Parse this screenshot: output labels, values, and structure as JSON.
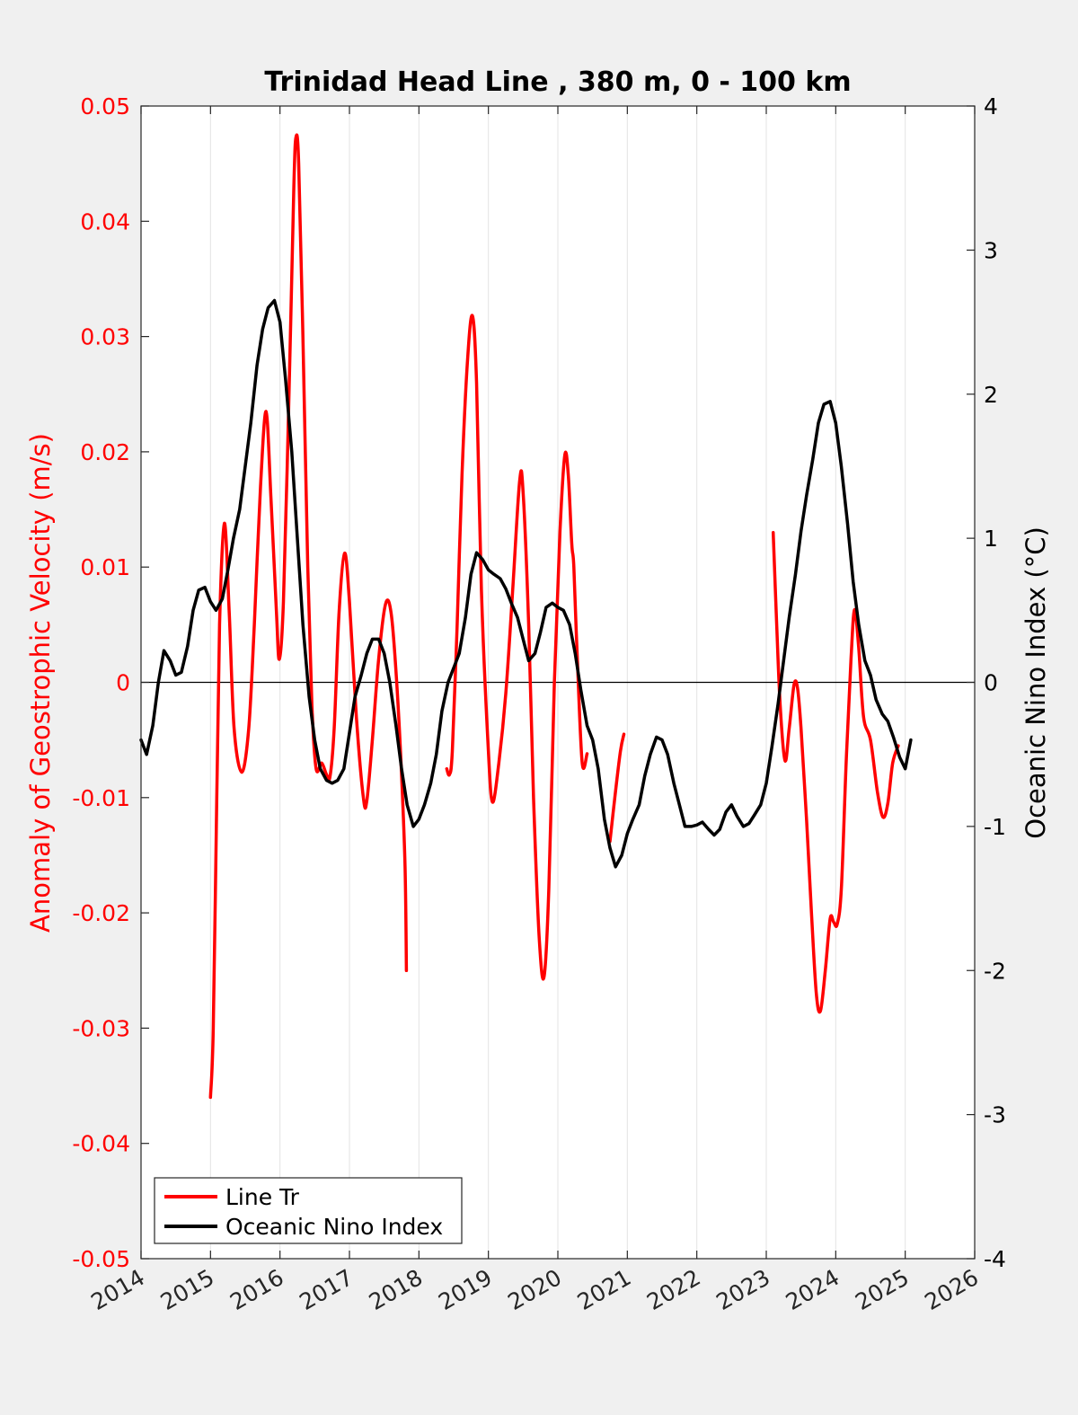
{
  "chart_data": {
    "type": "line",
    "title": "Trinidad Head Line , 380 m, 0 - 100 km",
    "xlabel": "",
    "xlim": [
      2014,
      2026
    ],
    "xticks": [
      2014,
      2015,
      2016,
      2017,
      2018,
      2019,
      2020,
      2021,
      2022,
      2023,
      2024,
      2025,
      2026
    ],
    "ylabel_left": "Anomaly of Geostrophic Velocity (m/s)",
    "ylim_left": [
      -0.05,
      0.05
    ],
    "yticks_left": [
      "-0.05",
      "-0.04",
      "-0.03",
      "-0.02",
      "-0.01",
      "0",
      "0.01",
      "0.02",
      "0.03",
      "0.04",
      "0.05"
    ],
    "ylabel_right": "Oceanic Nino Index (°C)",
    "ylim_right": [
      -4,
      4
    ],
    "yticks_right": [
      "-4",
      "-3",
      "-2",
      "-1",
      "0",
      "1",
      "2",
      "3",
      "4"
    ],
    "grid": "vertical",
    "legend_position": "bottom-left",
    "colors": {
      "line_tr": "#ff0000",
      "oni": "#000000"
    },
    "series": [
      {
        "name": "Line Tr",
        "axis": "left",
        "segments": [
          [
            [
              2015.0,
              -0.036
            ],
            [
              2015.04,
              -0.03
            ],
            [
              2015.09,
              -0.01
            ],
            [
              2015.13,
              0.005
            ],
            [
              2015.2,
              0.0138
            ],
            [
              2015.27,
              0.006
            ],
            [
              2015.34,
              -0.004
            ],
            [
              2015.45,
              -0.0078
            ],
            [
              2015.55,
              -0.004
            ],
            [
              2015.63,
              0.005
            ],
            [
              2015.72,
              0.017
            ],
            [
              2015.8,
              0.0235
            ],
            [
              2015.87,
              0.016
            ],
            [
              2015.95,
              0.006
            ],
            [
              2015.99,
              0.002
            ],
            [
              2016.05,
              0.007
            ],
            [
              2016.13,
              0.025
            ],
            [
              2016.2,
              0.043
            ],
            [
              2016.23,
              0.0473
            ],
            [
              2016.27,
              0.045
            ],
            [
              2016.33,
              0.03
            ],
            [
              2016.4,
              0.01
            ],
            [
              2016.46,
              -0.002
            ],
            [
              2016.52,
              -0.0075
            ],
            [
              2016.6,
              -0.007
            ],
            [
              2016.67,
              -0.008
            ],
            [
              2016.72,
              -0.0082
            ],
            [
              2016.78,
              -0.004
            ],
            [
              2016.85,
              0.006
            ],
            [
              2016.93,
              0.0112
            ],
            [
              2017.0,
              0.007
            ],
            [
              2017.1,
              -0.003
            ],
            [
              2017.2,
              -0.01
            ],
            [
              2017.25,
              -0.0103
            ],
            [
              2017.33,
              -0.005
            ],
            [
              2017.42,
              0.002
            ],
            [
              2017.52,
              0.0068
            ],
            [
              2017.6,
              0.006
            ],
            [
              2017.68,
              0.0
            ],
            [
              2017.75,
              -0.008
            ],
            [
              2017.8,
              -0.016
            ],
            [
              2017.82,
              -0.025
            ]
          ],
          [
            [
              2018.4,
              -0.0075
            ],
            [
              2018.44,
              -0.008
            ],
            [
              2018.48,
              -0.006
            ],
            [
              2018.55,
              0.005
            ],
            [
              2018.62,
              0.018
            ],
            [
              2018.7,
              0.028
            ],
            [
              2018.77,
              0.0318
            ],
            [
              2018.83,
              0.026
            ],
            [
              2018.9,
              0.008
            ],
            [
              2019.0,
              -0.006
            ],
            [
              2019.06,
              -0.0104
            ],
            [
              2019.15,
              -0.007
            ],
            [
              2019.25,
              -0.001
            ],
            [
              2019.35,
              0.008
            ],
            [
              2019.45,
              0.0175
            ],
            [
              2019.5,
              0.0165
            ],
            [
              2019.58,
              0.005
            ],
            [
              2019.65,
              -0.01
            ],
            [
              2019.73,
              -0.022
            ],
            [
              2019.8,
              -0.0256
            ],
            [
              2019.87,
              -0.018
            ],
            [
              2019.95,
              0.0
            ],
            [
              2020.03,
              0.013
            ],
            [
              2020.1,
              0.0197
            ],
            [
              2020.15,
              0.018
            ],
            [
              2020.2,
              0.012
            ],
            [
              2020.23,
              0.01
            ],
            [
              2020.28,
              0.002
            ],
            [
              2020.35,
              -0.007
            ],
            [
              2020.42,
              -0.0062
            ]
          ],
          [
            [
              2020.75,
              -0.0138
            ],
            [
              2020.82,
              -0.01
            ],
            [
              2020.9,
              -0.006
            ],
            [
              2020.95,
              -0.0045
            ]
          ],
          [
            [
              2023.1,
              0.013
            ],
            [
              2023.15,
              0.005
            ],
            [
              2023.2,
              -0.002
            ],
            [
              2023.27,
              -0.0068
            ],
            [
              2023.33,
              -0.004
            ],
            [
              2023.4,
              -0.0002
            ],
            [
              2023.45,
              -0.0005
            ],
            [
              2023.5,
              -0.004
            ],
            [
              2023.58,
              -0.012
            ],
            [
              2023.65,
              -0.02
            ],
            [
              2023.72,
              -0.027
            ],
            [
              2023.78,
              -0.0285
            ],
            [
              2023.85,
              -0.025
            ],
            [
              2023.92,
              -0.0205
            ],
            [
              2023.97,
              -0.0208
            ],
            [
              2024.02,
              -0.021
            ],
            [
              2024.08,
              -0.018
            ],
            [
              2024.15,
              -0.007
            ],
            [
              2024.22,
              0.002
            ],
            [
              2024.27,
              0.0063
            ],
            [
              2024.33,
              0.003
            ],
            [
              2024.4,
              -0.003
            ],
            [
              2024.5,
              -0.005
            ],
            [
              2024.6,
              -0.0095
            ],
            [
              2024.68,
              -0.0117
            ],
            [
              2024.75,
              -0.0105
            ],
            [
              2024.82,
              -0.007
            ],
            [
              2024.9,
              -0.0055
            ]
          ]
        ]
      },
      {
        "name": "Oceanic Nino Index",
        "axis": "right",
        "points": [
          [
            2014.0,
            -0.4
          ],
          [
            2014.08,
            -0.5
          ],
          [
            2014.17,
            -0.3
          ],
          [
            2014.25,
            0.0
          ],
          [
            2014.33,
            0.22
          ],
          [
            2014.42,
            0.15
          ],
          [
            2014.5,
            0.05
          ],
          [
            2014.58,
            0.07
          ],
          [
            2014.67,
            0.25
          ],
          [
            2014.75,
            0.5
          ],
          [
            2014.83,
            0.64
          ],
          [
            2014.92,
            0.66
          ],
          [
            2015.0,
            0.56
          ],
          [
            2015.08,
            0.5
          ],
          [
            2015.17,
            0.58
          ],
          [
            2015.25,
            0.78
          ],
          [
            2015.33,
            1.0
          ],
          [
            2015.42,
            1.2
          ],
          [
            2015.5,
            1.5
          ],
          [
            2015.58,
            1.8
          ],
          [
            2015.67,
            2.2
          ],
          [
            2015.75,
            2.45
          ],
          [
            2015.83,
            2.6
          ],
          [
            2015.92,
            2.65
          ],
          [
            2016.0,
            2.5
          ],
          [
            2016.08,
            2.1
          ],
          [
            2016.17,
            1.6
          ],
          [
            2016.25,
            1.0
          ],
          [
            2016.33,
            0.4
          ],
          [
            2016.42,
            -0.1
          ],
          [
            2016.5,
            -0.4
          ],
          [
            2016.58,
            -0.6
          ],
          [
            2016.67,
            -0.68
          ],
          [
            2016.75,
            -0.7
          ],
          [
            2016.83,
            -0.68
          ],
          [
            2016.92,
            -0.6
          ],
          [
            2017.0,
            -0.35
          ],
          [
            2017.08,
            -0.1
          ],
          [
            2017.17,
            0.05
          ],
          [
            2017.25,
            0.2
          ],
          [
            2017.33,
            0.3
          ],
          [
            2017.42,
            0.3
          ],
          [
            2017.5,
            0.2
          ],
          [
            2017.58,
            0.0
          ],
          [
            2017.67,
            -0.3
          ],
          [
            2017.75,
            -0.6
          ],
          [
            2017.83,
            -0.85
          ],
          [
            2017.92,
            -1.0
          ],
          [
            2018.0,
            -0.95
          ],
          [
            2018.08,
            -0.85
          ],
          [
            2018.17,
            -0.7
          ],
          [
            2018.25,
            -0.5
          ],
          [
            2018.33,
            -0.2
          ],
          [
            2018.42,
            0.0
          ],
          [
            2018.5,
            0.1
          ],
          [
            2018.58,
            0.2
          ],
          [
            2018.67,
            0.45
          ],
          [
            2018.75,
            0.75
          ],
          [
            2018.83,
            0.9
          ],
          [
            2018.92,
            0.85
          ],
          [
            2019.0,
            0.78
          ],
          [
            2019.08,
            0.75
          ],
          [
            2019.17,
            0.72
          ],
          [
            2019.25,
            0.65
          ],
          [
            2019.33,
            0.55
          ],
          [
            2019.42,
            0.45
          ],
          [
            2019.5,
            0.3
          ],
          [
            2019.58,
            0.15
          ],
          [
            2019.67,
            0.2
          ],
          [
            2019.75,
            0.35
          ],
          [
            2019.83,
            0.52
          ],
          [
            2019.92,
            0.55
          ],
          [
            2020.0,
            0.52
          ],
          [
            2020.08,
            0.5
          ],
          [
            2020.17,
            0.4
          ],
          [
            2020.25,
            0.2
          ],
          [
            2020.33,
            -0.05
          ],
          [
            2020.42,
            -0.3
          ],
          [
            2020.5,
            -0.4
          ],
          [
            2020.58,
            -0.6
          ],
          [
            2020.67,
            -0.95
          ],
          [
            2020.75,
            -1.15
          ],
          [
            2020.83,
            -1.28
          ],
          [
            2020.92,
            -1.2
          ],
          [
            2021.0,
            -1.05
          ],
          [
            2021.08,
            -0.95
          ],
          [
            2021.17,
            -0.85
          ],
          [
            2021.25,
            -0.65
          ],
          [
            2021.33,
            -0.5
          ],
          [
            2021.42,
            -0.38
          ],
          [
            2021.5,
            -0.4
          ],
          [
            2021.58,
            -0.5
          ],
          [
            2021.67,
            -0.7
          ],
          [
            2021.75,
            -0.85
          ],
          [
            2021.83,
            -1.0
          ],
          [
            2021.92,
            -1.0
          ],
          [
            2022.0,
            -0.99
          ],
          [
            2022.08,
            -0.97
          ],
          [
            2022.17,
            -1.02
          ],
          [
            2022.25,
            -1.06
          ],
          [
            2022.33,
            -1.02
          ],
          [
            2022.42,
            -0.9
          ],
          [
            2022.5,
            -0.85
          ],
          [
            2022.58,
            -0.93
          ],
          [
            2022.67,
            -1.0
          ],
          [
            2022.75,
            -0.98
          ],
          [
            2022.83,
            -0.92
          ],
          [
            2022.92,
            -0.85
          ],
          [
            2023.0,
            -0.7
          ],
          [
            2023.08,
            -0.45
          ],
          [
            2023.17,
            -0.15
          ],
          [
            2023.25,
            0.15
          ],
          [
            2023.33,
            0.45
          ],
          [
            2023.42,
            0.75
          ],
          [
            2023.5,
            1.05
          ],
          [
            2023.58,
            1.3
          ],
          [
            2023.67,
            1.55
          ],
          [
            2023.75,
            1.8
          ],
          [
            2023.83,
            1.93
          ],
          [
            2023.92,
            1.95
          ],
          [
            2024.0,
            1.8
          ],
          [
            2024.08,
            1.5
          ],
          [
            2024.17,
            1.1
          ],
          [
            2024.25,
            0.7
          ],
          [
            2024.33,
            0.4
          ],
          [
            2024.42,
            0.15
          ],
          [
            2024.5,
            0.05
          ],
          [
            2024.58,
            -0.12
          ],
          [
            2024.67,
            -0.22
          ],
          [
            2024.75,
            -0.27
          ],
          [
            2024.83,
            -0.38
          ],
          [
            2024.92,
            -0.52
          ],
          [
            2025.0,
            -0.6
          ],
          [
            2025.08,
            -0.4
          ]
        ]
      }
    ]
  }
}
